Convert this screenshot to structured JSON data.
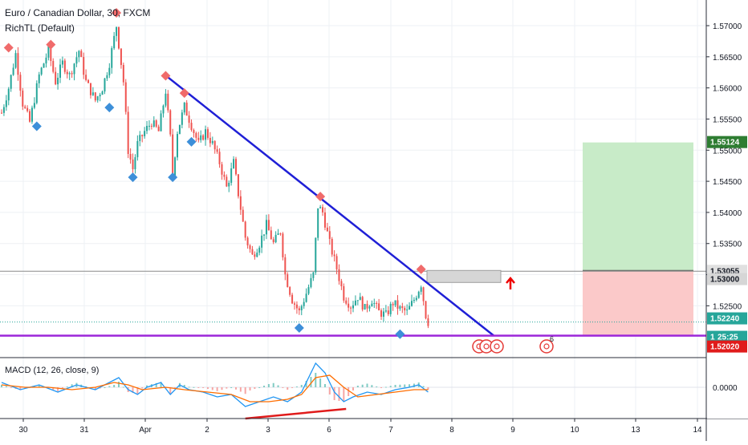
{
  "header": {
    "symbol": "Euro / Canadian Dollar, 30, FXCM",
    "indicator": "RichTL (Default)",
    "macd_label": "MACD (12, 26, close, 9)"
  },
  "colors": {
    "up_candle": "#26a69a",
    "down_candle": "#ef5350",
    "trendline": "#1f1fd6",
    "support_line": "#9c27d9",
    "divergence_line": "#e01b1b",
    "target_zone": "#c8ebc8",
    "stop_zone": "#fbc9c9",
    "last_price_line": "#26a69a",
    "macd_line": "#2196f3",
    "signal_line": "#ff6d00",
    "pivot_high": "#f06b6b",
    "pivot_low": "#3d8fd9",
    "axis_text": "#131722",
    "grid": "#eef0f4"
  },
  "price_axis": {
    "ticks": [
      "1.57000",
      "1.56500",
      "1.56000",
      "1.55500",
      "1.55000",
      "1.54500",
      "1.54000",
      "1.53500",
      "1.53000",
      "1.52500"
    ],
    "macd_tick": "0.0000",
    "price_badges": {
      "target": "1.55124",
      "entry": "1.53055",
      "level": "1.53000",
      "last": "1.52240",
      "countdown": "25:25",
      "support": "1.52020",
      "partial": "1"
    }
  },
  "time_axis": {
    "labels": [
      "30",
      "31",
      "Apr",
      "2",
      "3",
      "6",
      "7",
      "8",
      "9",
      "10",
      "13",
      "14"
    ]
  },
  "marker_text": "6",
  "chart_data": {
    "type": "candlestick",
    "title": "Euro / Canadian Dollar, 30, FXCM",
    "symbol": "EURCAD",
    "timeframe": "30",
    "x_tick_labels": [
      "30",
      "31",
      "Apr",
      "2",
      "3",
      "6",
      "7",
      "8",
      "9",
      "10",
      "13",
      "14"
    ],
    "ylim": [
      1.5185,
      1.5725
    ],
    "close_path": [
      [
        0,
        1.556
      ],
      [
        3,
        1.56
      ],
      [
        6,
        1.5655
      ],
      [
        9,
        1.5575
      ],
      [
        12,
        1.5545
      ],
      [
        16,
        1.562
      ],
      [
        20,
        1.566
      ],
      [
        23,
        1.561
      ],
      [
        26,
        1.564
      ],
      [
        29,
        1.562
      ],
      [
        33,
        1.566
      ],
      [
        36,
        1.561
      ],
      [
        40,
        1.558
      ],
      [
        43,
        1.56
      ],
      [
        46,
        1.564
      ],
      [
        49,
        1.57
      ],
      [
        52,
        1.561
      ],
      [
        54,
        1.55
      ],
      [
        56,
        1.547
      ],
      [
        58,
        1.551
      ],
      [
        61,
        1.553
      ],
      [
        64,
        1.5545
      ],
      [
        67,
        1.553
      ],
      [
        70,
        1.5595
      ],
      [
        72,
        1.552
      ],
      [
        73,
        1.546
      ],
      [
        75,
        1.553
      ],
      [
        78,
        1.557
      ],
      [
        81,
        1.554
      ],
      [
        84,
        1.551
      ],
      [
        87,
        1.553
      ],
      [
        90,
        1.551
      ],
      [
        93,
        1.548
      ],
      [
        96,
        1.544
      ],
      [
        99,
        1.548
      ],
      [
        101,
        1.543
      ],
      [
        104,
        1.536
      ],
      [
        107,
        1.533
      ],
      [
        110,
        1.535
      ],
      [
        113,
        1.538
      ],
      [
        116,
        1.535
      ],
      [
        119,
        1.537
      ],
      [
        121,
        1.53
      ],
      [
        124,
        1.526
      ],
      [
        127,
        1.524
      ],
      [
        130,
        1.527
      ],
      [
        133,
        1.53
      ],
      [
        135,
        1.541
      ],
      [
        137,
        1.54
      ],
      [
        140,
        1.535
      ],
      [
        143,
        1.531
      ],
      [
        146,
        1.5265
      ],
      [
        149,
        1.525
      ],
      [
        152,
        1.5265
      ],
      [
        155,
        1.5245
      ],
      [
        158,
        1.526
      ],
      [
        161,
        1.524
      ],
      [
        164,
        1.5235
      ],
      [
        167,
        1.5255
      ],
      [
        170,
        1.5245
      ],
      [
        173,
        1.524
      ],
      [
        176,
        1.526
      ],
      [
        179,
        1.5285
      ],
      [
        181,
        1.5235
      ],
      [
        182,
        1.5224
      ]
    ],
    "pivot_highs": [
      {
        "bar": 3,
        "price": 1.5662
      },
      {
        "bar": 21,
        "price": 1.5667
      },
      {
        "bar": 49,
        "price": 1.5718
      },
      {
        "bar": 70,
        "price": 1.5617
      },
      {
        "bar": 78,
        "price": 1.5589
      },
      {
        "bar": 136,
        "price": 1.5423
      },
      {
        "bar": 179,
        "price": 1.5306
      }
    ],
    "pivot_lows": [
      {
        "bar": 15,
        "price": 1.5541
      },
      {
        "bar": 46,
        "price": 1.5571
      },
      {
        "bar": 56,
        "price": 1.5459
      },
      {
        "bar": 73,
        "price": 1.5459
      },
      {
        "bar": 81,
        "price": 1.5516
      },
      {
        "bar": 127,
        "price": 1.5217
      },
      {
        "bar": 170,
        "price": 1.5207
      }
    ],
    "trendline": {
      "from": {
        "bar": 71,
        "price": 1.5617
      },
      "to": {
        "bar": 210,
        "price": 1.5202
      }
    },
    "support_level": 1.5202,
    "entry_level": 1.53055,
    "target_level": 1.55124,
    "last_price": 1.5224,
    "position_box": {
      "from_time": "10",
      "to_time": "14"
    },
    "macd": {
      "label": "MACD (12, 26, close, 9)",
      "zero_label": "0.0000",
      "ylim": [
        -0.0016,
        0.0012
      ],
      "line_path": [
        [
          0,
          0.0002
        ],
        [
          8,
          -0.0001
        ],
        [
          16,
          0.0001
        ],
        [
          24,
          -0.0002
        ],
        [
          32,
          0.0001
        ],
        [
          40,
          -0.0001
        ],
        [
          46,
          0.0002
        ],
        [
          50,
          0.0004
        ],
        [
          54,
          -0.0001
        ],
        [
          58,
          -0.0003
        ],
        [
          62,
          0.0
        ],
        [
          68,
          0.0002
        ],
        [
          72,
          -0.0003
        ],
        [
          76,
          0.0001
        ],
        [
          80,
          -0.0001
        ],
        [
          86,
          -0.0002
        ],
        [
          92,
          -0.0004
        ],
        [
          98,
          -0.0003
        ],
        [
          104,
          -0.0008
        ],
        [
          110,
          -0.0006
        ],
        [
          116,
          -0.0004
        ],
        [
          122,
          -0.0006
        ],
        [
          128,
          -0.0002
        ],
        [
          134,
          0.001
        ],
        [
          138,
          0.0006
        ],
        [
          142,
          -0.0002
        ],
        [
          146,
          -0.0006
        ],
        [
          150,
          -0.0004
        ],
        [
          156,
          -0.0002
        ],
        [
          162,
          -0.0003
        ],
        [
          168,
          -0.0001
        ],
        [
          174,
          0.0
        ],
        [
          178,
          0.0001
        ],
        [
          182,
          -0.0002
        ]
      ],
      "signal_path": [
        [
          0,
          0.0001
        ],
        [
          10,
          0.0
        ],
        [
          20,
          0.0
        ],
        [
          30,
          -0.0001
        ],
        [
          40,
          0.0
        ],
        [
          48,
          0.0002
        ],
        [
          54,
          0.0001
        ],
        [
          60,
          -0.0001
        ],
        [
          70,
          0.0
        ],
        [
          78,
          -0.0001
        ],
        [
          88,
          -0.0002
        ],
        [
          98,
          -0.0003
        ],
        [
          106,
          -0.0006
        ],
        [
          114,
          -0.0006
        ],
        [
          122,
          -0.0005
        ],
        [
          128,
          -0.0003
        ],
        [
          134,
          0.0004
        ],
        [
          140,
          0.0005
        ],
        [
          146,
          0.0
        ],
        [
          152,
          -0.0004
        ],
        [
          160,
          -0.0003
        ],
        [
          168,
          -0.0002
        ],
        [
          176,
          -0.0001
        ],
        [
          182,
          -0.0001
        ]
      ],
      "divergence_line": {
        "from": {
          "bar": 104,
          "value": -0.0013
        },
        "to": {
          "bar": 147,
          "value": -0.0009
        }
      }
    }
  }
}
